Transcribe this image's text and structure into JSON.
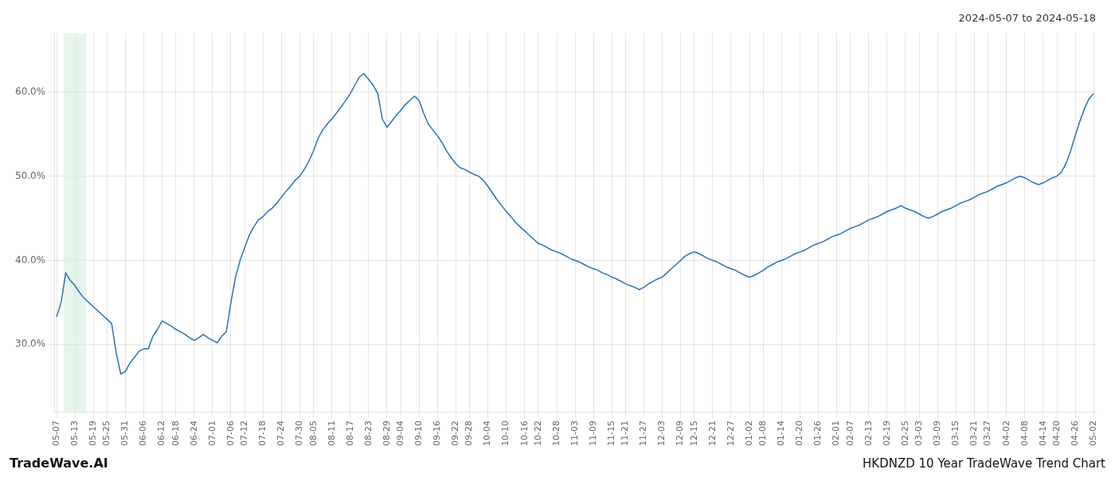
{
  "chart_data": {
    "type": "line",
    "title": "2024-05-07 to 2024-05-18",
    "annotations": [
      "TradeWave.AI",
      "HKDNZD 10 Year TradeWave Trend Chart"
    ],
    "categories": [
      "05-07",
      null,
      null,
      null,
      "05-13",
      null,
      null,
      null,
      "05-19",
      null,
      null,
      "05-25",
      null,
      null,
      null,
      "05-31",
      null,
      null,
      null,
      "06-06",
      null,
      null,
      null,
      "06-12",
      null,
      null,
      "06-18",
      null,
      null,
      null,
      "06-24",
      null,
      null,
      null,
      "07-01",
      null,
      null,
      null,
      "07-06",
      null,
      null,
      "07-12",
      null,
      null,
      null,
      "07-18",
      null,
      null,
      null,
      "07-24",
      null,
      null,
      null,
      "07-30",
      null,
      null,
      "08-05",
      null,
      null,
      null,
      "08-11",
      null,
      null,
      null,
      "08-17",
      null,
      null,
      null,
      "08-23",
      null,
      null,
      null,
      "08-29",
      null,
      null,
      "09-04",
      null,
      null,
      null,
      "09-10",
      null,
      null,
      null,
      "09-16",
      null,
      null,
      null,
      "09-22",
      null,
      null,
      "09-28",
      null,
      null,
      null,
      "10-04",
      null,
      null,
      null,
      "10-10",
      null,
      null,
      null,
      "10-16",
      null,
      null,
      "10-22",
      null,
      null,
      null,
      "10-28",
      null,
      null,
      null,
      "11-03",
      null,
      null,
      null,
      "11-09",
      null,
      null,
      null,
      "11-15",
      null,
      null,
      "11-21",
      null,
      null,
      null,
      "11-27",
      null,
      null,
      null,
      "12-03",
      null,
      null,
      null,
      "12-09",
      null,
      null,
      "12-15",
      null,
      null,
      null,
      "12-21",
      null,
      null,
      null,
      "12-27",
      null,
      null,
      null,
      "01-02",
      null,
      null,
      "01-08",
      null,
      null,
      null,
      "01-14",
      null,
      null,
      null,
      "01-20",
      null,
      null,
      null,
      "01-26",
      null,
      null,
      null,
      "02-01",
      null,
      null,
      "02-07",
      null,
      null,
      null,
      "02-13",
      null,
      null,
      null,
      "02-19",
      null,
      null,
      null,
      "02-25",
      null,
      null,
      "03-03",
      null,
      null,
      null,
      "03-09",
      null,
      null,
      null,
      "03-15",
      null,
      null,
      null,
      "03-21",
      null,
      null,
      "03-27",
      null,
      null,
      null,
      "04-02",
      null,
      null,
      null,
      "04-08",
      null,
      null,
      null,
      "04-14",
      null,
      null,
      "04-20",
      null,
      null,
      null,
      "04-26",
      null,
      null,
      null,
      "05-02"
    ],
    "values": [
      0.333,
      0.35,
      0.385,
      0.376,
      0.37,
      0.362,
      0.355,
      0.35,
      0.345,
      0.34,
      0.335,
      0.33,
      0.325,
      0.29,
      0.265,
      0.268,
      0.278,
      0.285,
      0.292,
      0.295,
      0.295,
      0.31,
      0.318,
      0.328,
      0.325,
      0.322,
      0.318,
      0.315,
      0.312,
      0.308,
      0.305,
      0.308,
      0.312,
      0.308,
      0.305,
      0.302,
      0.31,
      0.315,
      0.35,
      0.38,
      0.4,
      0.415,
      0.43,
      0.44,
      0.448,
      0.452,
      0.458,
      0.462,
      0.468,
      0.475,
      0.482,
      0.488,
      0.495,
      0.5,
      0.508,
      0.518,
      0.53,
      0.545,
      0.555,
      0.562,
      0.568,
      0.575,
      0.582,
      0.59,
      0.598,
      0.608,
      0.618,
      0.622,
      0.615,
      0.608,
      0.598,
      0.568,
      0.558,
      0.565,
      0.572,
      0.578,
      0.585,
      0.59,
      0.595,
      0.59,
      0.575,
      0.562,
      0.555,
      0.548,
      0.54,
      0.53,
      0.522,
      0.515,
      0.51,
      0.508,
      0.505,
      0.502,
      0.5,
      0.495,
      0.488,
      0.48,
      0.472,
      0.465,
      0.458,
      0.452,
      0.445,
      0.44,
      0.435,
      0.43,
      0.425,
      0.42,
      0.418,
      0.415,
      0.412,
      0.41,
      0.408,
      0.405,
      0.402,
      0.4,
      0.398,
      0.395,
      0.392,
      0.39,
      0.388,
      0.385,
      0.383,
      0.38,
      0.378,
      0.375,
      0.372,
      0.37,
      0.368,
      0.365,
      0.368,
      0.372,
      0.375,
      0.378,
      0.38,
      0.385,
      0.39,
      0.395,
      0.4,
      0.405,
      0.408,
      0.41,
      0.408,
      0.405,
      0.402,
      0.4,
      0.398,
      0.395,
      0.392,
      0.39,
      0.388,
      0.385,
      0.382,
      0.38,
      0.382,
      0.385,
      0.388,
      0.392,
      0.395,
      0.398,
      0.4,
      0.402,
      0.405,
      0.408,
      0.41,
      0.412,
      0.415,
      0.418,
      0.42,
      0.422,
      0.425,
      0.428,
      0.43,
      0.432,
      0.435,
      0.438,
      0.44,
      0.442,
      0.445,
      0.448,
      0.45,
      0.452,
      0.455,
      0.458,
      0.46,
      0.462,
      0.465,
      0.462,
      0.46,
      0.458,
      0.455,
      0.452,
      0.45,
      0.452,
      0.455,
      0.458,
      0.46,
      0.462,
      0.465,
      0.468,
      0.47,
      0.472,
      0.475,
      0.478,
      0.48,
      0.482,
      0.485,
      0.488,
      0.49,
      0.492,
      0.495,
      0.498,
      0.5,
      0.498,
      0.495,
      0.492,
      0.49,
      0.492,
      0.495,
      0.498,
      0.5,
      0.505,
      0.515,
      0.53,
      0.548,
      0.565,
      0.58,
      0.592,
      0.598
    ],
    "color": "#2970b8",
    "ylim": [
      0.22,
      0.67
    ],
    "yticks": [
      {
        "value": 0.3,
        "label": "30.0%"
      },
      {
        "value": 0.4,
        "label": "40.0%"
      },
      {
        "value": 0.5,
        "label": "50.0%"
      },
      {
        "value": 0.6,
        "label": "60.0%"
      }
    ],
    "grid": true,
    "highlight": {
      "start": 2,
      "end": 6,
      "color": "#d6eedd"
    }
  }
}
